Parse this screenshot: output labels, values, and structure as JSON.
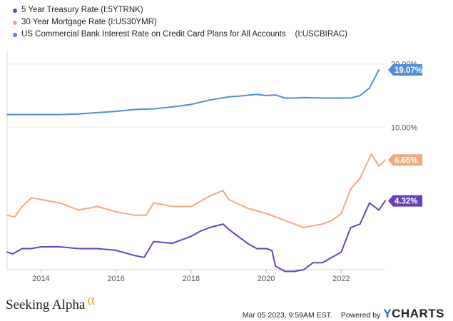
{
  "legend": [
    {
      "label": "5 Year Treasury Rate (I:5YTRNK)",
      "color": "#6a3fbf"
    },
    {
      "label": "30 Year Mortgage Rate (I:US30YMR)",
      "color": "#f4a87c"
    },
    {
      "label": "US Commercial Bank Interest Rate on Credit Card Plans for All Accounts    (I:USCBIRAC)",
      "color": "#4f8fd8"
    }
  ],
  "footer": {
    "brand": "Seeking Alpha",
    "brand_mark": "α",
    "timestamp": "Mar 05 2023, 9:59AM EST.",
    "powered_by": "Powered by",
    "ycharts_y": "Y",
    "ycharts_rest": "CHARTS"
  },
  "chart_data": {
    "type": "line",
    "x_tick_labels": [
      "2014",
      "2016",
      "2018",
      "2020",
      "2022"
    ],
    "x_ticks": [
      2014,
      2016,
      2018,
      2020,
      2022
    ],
    "xlim": [
      2013.1,
      2023.17
    ],
    "upper_panel": {
      "tick_labels": [
        "20.00%",
        "10.00%"
      ],
      "ticks": [
        20,
        10
      ],
      "ylim": [
        8,
        22
      ],
      "series": [
        {
          "name": "US Commercial Bank Interest Rate on Credit Card Plans for All Accounts    (I:USCBIRAC)",
          "color": "#4f8fd8",
          "end_label": "19.07%",
          "x": [
            2013.1,
            2014.0,
            2014.5,
            2015.0,
            2015.5,
            2016.0,
            2016.5,
            2017.0,
            2017.5,
            2018.0,
            2018.5,
            2019.0,
            2019.25,
            2019.75,
            2020.0,
            2020.25,
            2020.5,
            2020.75,
            2021.0,
            2021.5,
            2022.0,
            2022.25,
            2022.5,
            2022.75,
            2023.0
          ],
          "y": [
            12.0,
            12.0,
            12.0,
            12.1,
            12.3,
            12.5,
            12.8,
            12.9,
            13.2,
            13.6,
            14.3,
            14.8,
            14.9,
            15.2,
            15.0,
            15.1,
            14.6,
            14.6,
            14.7,
            14.6,
            14.6,
            14.6,
            15.0,
            16.2,
            19.07
          ]
        }
      ]
    },
    "lower_panel": {
      "ylim": [
        0.4,
        7.8
      ],
      "series": [
        {
          "name": "30 Year Mortgage Rate (I:US30YMR)",
          "color": "#f4a87c",
          "end_label": "6.65%",
          "x": [
            2013.1,
            2013.3,
            2013.5,
            2013.75,
            2014.0,
            2014.5,
            2015.0,
            2015.5,
            2016.0,
            2016.5,
            2016.8,
            2017.0,
            2017.5,
            2018.0,
            2018.5,
            2018.85,
            2019.0,
            2019.5,
            2020.0,
            2020.5,
            2021.0,
            2021.5,
            2021.75,
            2022.0,
            2022.25,
            2022.5,
            2022.8,
            2023.0,
            2023.17
          ],
          "y": [
            3.5,
            3.4,
            4.0,
            4.5,
            4.4,
            4.2,
            3.8,
            4.0,
            3.7,
            3.5,
            3.5,
            4.2,
            4.0,
            4.0,
            4.6,
            4.9,
            4.4,
            3.9,
            3.6,
            3.2,
            2.8,
            3.0,
            3.2,
            3.6,
            5.0,
            5.6,
            7.0,
            6.3,
            6.65
          ]
        },
        {
          "name": "5 Year Treasury Rate (I:5YTRNK)",
          "color": "#6a3fbf",
          "end_label": "4.32%",
          "x": [
            2013.1,
            2013.25,
            2013.5,
            2013.75,
            2014.0,
            2014.5,
            2015.0,
            2015.5,
            2016.0,
            2016.5,
            2016.75,
            2017.0,
            2017.5,
            2018.0,
            2018.25,
            2018.5,
            2018.85,
            2019.0,
            2019.5,
            2019.75,
            2020.0,
            2020.15,
            2020.25,
            2020.5,
            2020.75,
            2021.0,
            2021.25,
            2021.5,
            2021.75,
            2022.0,
            2022.25,
            2022.5,
            2022.75,
            2023.0,
            2023.17
          ],
          "y": [
            1.4,
            1.3,
            1.6,
            1.6,
            1.7,
            1.7,
            1.6,
            1.6,
            1.5,
            1.2,
            1.1,
            2.0,
            1.9,
            2.3,
            2.6,
            2.8,
            3.0,
            2.7,
            1.9,
            1.6,
            1.6,
            1.5,
            0.6,
            0.3,
            0.3,
            0.4,
            0.8,
            0.8,
            1.1,
            1.4,
            2.8,
            3.0,
            4.2,
            3.8,
            4.32
          ]
        }
      ]
    }
  }
}
